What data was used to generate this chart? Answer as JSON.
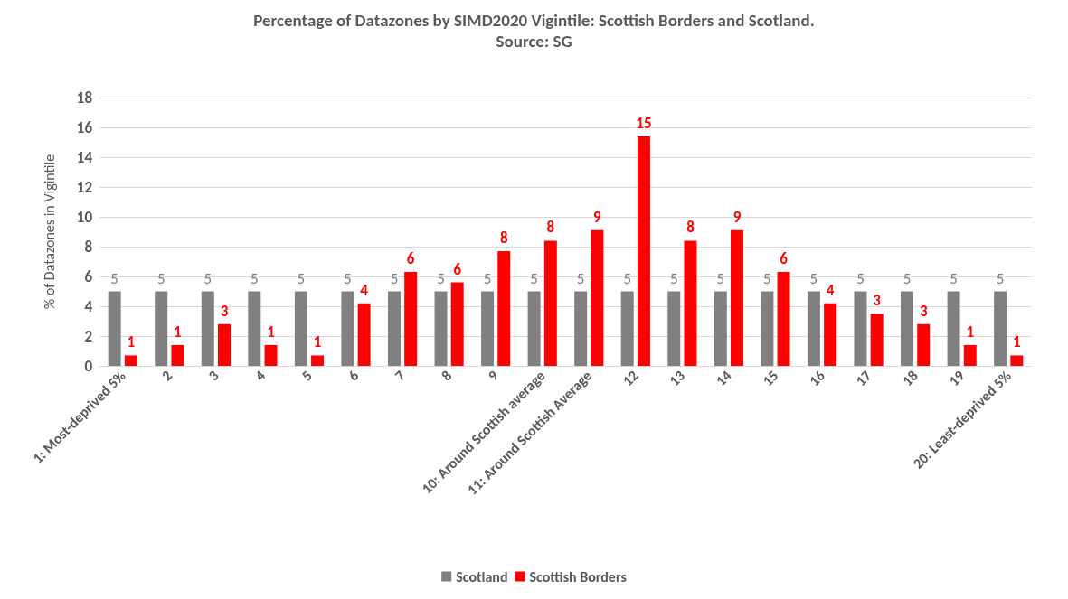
{
  "chart_data": {
    "type": "bar",
    "title": "Percentage of Datazones by SIMD2020 Vigintile: Scottish Borders and Scotland.",
    "subtitle": "Source: SG",
    "ylabel": "% of Datazones in Vigintile",
    "categories": [
      "1: Most-deprived 5%",
      "2",
      "3",
      "4",
      "5",
      "6",
      "7",
      "8",
      "9",
      "10: Around Scottish average",
      "11: Around Scottish Average",
      "12",
      "13",
      "14",
      "15",
      "16",
      "17",
      "18",
      "19",
      "20: Least-deprived 5%"
    ],
    "series": [
      {
        "name": "Scotland",
        "color": "#808080",
        "values": [
          5,
          5,
          5,
          5,
          5,
          5,
          5,
          5,
          5,
          5,
          5,
          5,
          5,
          5,
          5,
          5,
          5,
          5,
          5,
          5
        ],
        "value_labels": [
          "5",
          "5",
          "5",
          "5",
          "5",
          "5",
          "5",
          "5",
          "5",
          "5",
          "5",
          "5",
          "5",
          "5",
          "5",
          "5",
          "5",
          "5",
          "5",
          "5"
        ]
      },
      {
        "name": "Scottish Borders",
        "color": "#ff0000",
        "values": [
          0.7,
          1.4,
          2.8,
          1.4,
          0.7,
          4.2,
          6.3,
          5.6,
          7.7,
          8.4,
          9.1,
          15.4,
          8.4,
          9.1,
          6.3,
          4.2,
          3.5,
          2.8,
          1.4,
          0.7
        ],
        "value_labels": [
          "1",
          "1",
          "3",
          "1",
          "1",
          "4",
          "6",
          "6",
          "8",
          "8",
          "9",
          "15",
          "8",
          "9",
          "6",
          "4",
          "3",
          "3",
          "1",
          "1"
        ]
      }
    ],
    "ylim": [
      0,
      18
    ],
    "yticks": [
      0,
      2,
      4,
      6,
      8,
      10,
      12,
      14,
      16,
      18
    ],
    "grid": "y",
    "legend": "bottom"
  }
}
